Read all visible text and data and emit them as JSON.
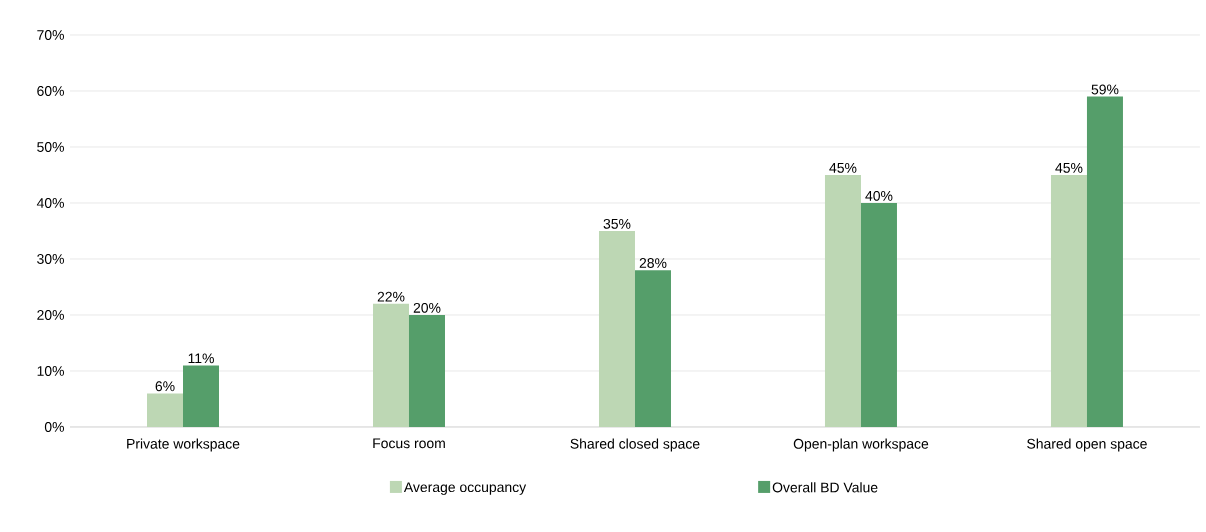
{
  "chart_data": {
    "type": "bar",
    "categories": [
      "Private workspace",
      "Focus room",
      "Shared closed space",
      "Open-plan workspace",
      "Shared open space"
    ],
    "series": [
      {
        "name": "Average occupancy",
        "color": "#bdd7b4",
        "values": [
          6,
          22,
          35,
          45,
          45
        ],
        "value_labels": [
          "6%",
          "22%",
          "35%",
          "45%",
          "45%"
        ]
      },
      {
        "name": "Overall BD Value",
        "color": "#559e6a",
        "values": [
          11,
          20,
          28,
          40,
          59
        ],
        "value_labels": [
          "11%",
          "20%",
          "28%",
          "40%",
          "59%"
        ]
      }
    ],
    "ylim": [
      0,
      70
    ],
    "yticks": [
      {
        "value": 0,
        "label": "0%"
      },
      {
        "value": 10,
        "label": "10%"
      },
      {
        "value": 20,
        "label": "20%"
      },
      {
        "value": 30,
        "label": "30%"
      },
      {
        "value": 40,
        "label": "40%"
      },
      {
        "value": 50,
        "label": "50%"
      },
      {
        "value": 60,
        "label": "60%"
      },
      {
        "value": 70,
        "label": "70%"
      }
    ],
    "grid": "y",
    "legend": "bottom"
  }
}
